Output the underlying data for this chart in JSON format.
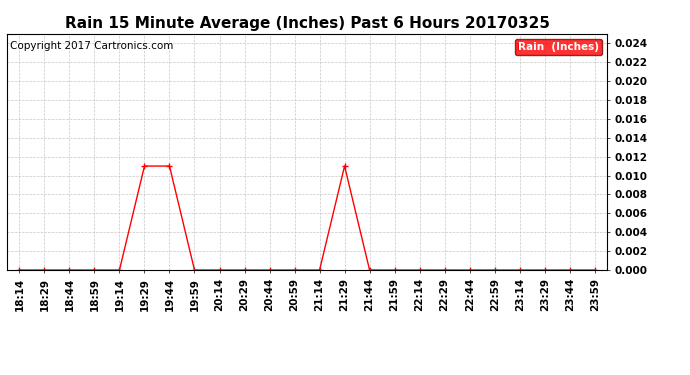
{
  "title": "Rain 15 Minute Average (Inches) Past 6 Hours 20170325",
  "copyright": "Copyright 2017 Cartronics.com",
  "legend_label": "Rain  (Inches)",
  "legend_bg": "#ff0000",
  "legend_text_color": "#ffffff",
  "line_color": "#ff0000",
  "marker_color": "#ff0000",
  "background_color": "#ffffff",
  "grid_color": "#c8c8c8",
  "ylim": [
    0.0,
    0.025
  ],
  "yticks": [
    0.0,
    0.002,
    0.004,
    0.006,
    0.008,
    0.01,
    0.012,
    0.014,
    0.016,
    0.018,
    0.02,
    0.022,
    0.024
  ],
  "x_labels": [
    "18:14",
    "18:29",
    "18:44",
    "18:59",
    "19:14",
    "19:29",
    "19:44",
    "19:59",
    "20:14",
    "20:29",
    "20:44",
    "20:59",
    "21:14",
    "21:29",
    "21:44",
    "21:59",
    "22:14",
    "22:29",
    "22:44",
    "22:59",
    "23:14",
    "23:29",
    "23:44",
    "23:59"
  ],
  "y_values": [
    0.0,
    0.0,
    0.0,
    0.0,
    0.0,
    0.011,
    0.011,
    0.0,
    0.0,
    0.0,
    0.0,
    0.0,
    0.0,
    0.011,
    0.0,
    0.0,
    0.0,
    0.0,
    0.0,
    0.0,
    0.0,
    0.0,
    0.0,
    0.0
  ],
  "title_fontsize": 11,
  "axis_fontsize": 7.5,
  "copyright_fontsize": 7.5
}
